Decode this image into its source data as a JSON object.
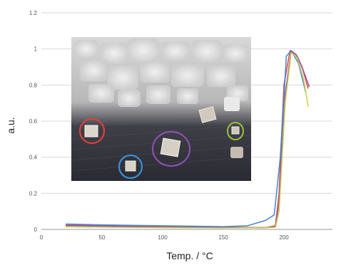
{
  "chart_data": {
    "type": "line",
    "xlabel": "Temp. / °C",
    "ylabel": "a.u.",
    "xlim": [
      0,
      240
    ],
    "ylim": [
      0,
      1.2
    ],
    "x_ticks": [
      "0",
      "50",
      "100",
      "150",
      "200"
    ],
    "y_ticks": [
      "0",
      "0.2",
      "0.4",
      "0.6",
      "0.8",
      "1",
      "1.2"
    ],
    "grid": "horizontal",
    "legend": "none",
    "inset_image": "photo of crystals with four circled samples (red, blue, purple, green)",
    "series": [
      {
        "color": "#e0403a",
        "x": [
          20,
          50,
          100,
          150,
          185,
          193,
          196,
          200,
          205,
          210,
          215,
          220
        ],
        "y": [
          0.025,
          0.02,
          0.015,
          0.012,
          0.01,
          0.02,
          0.2,
          0.8,
          0.99,
          0.97,
          0.9,
          0.78
        ]
      },
      {
        "color": "#3a7fd6",
        "x": [
          20,
          50,
          100,
          150,
          170,
          185,
          192,
          197,
          202,
          206,
          212,
          218
        ],
        "y": [
          0.03,
          0.025,
          0.02,
          0.015,
          0.02,
          0.05,
          0.08,
          0.4,
          0.96,
          0.99,
          0.92,
          0.76
        ]
      },
      {
        "color": "#8c4fb0",
        "x": [
          20,
          50,
          100,
          150,
          185,
          193,
          196,
          201,
          206,
          211,
          216,
          221
        ],
        "y": [
          0.02,
          0.018,
          0.012,
          0.01,
          0.01,
          0.015,
          0.15,
          0.75,
          0.99,
          0.96,
          0.88,
          0.79
        ]
      },
      {
        "color": "#c8cc3a",
        "x": [
          20,
          50,
          100,
          150,
          185,
          193,
          196,
          201,
          206,
          211,
          216,
          220
        ],
        "y": [
          0.015,
          0.012,
          0.01,
          0.008,
          0.01,
          0.012,
          0.1,
          0.7,
          0.98,
          0.95,
          0.84,
          0.68
        ]
      }
    ]
  }
}
